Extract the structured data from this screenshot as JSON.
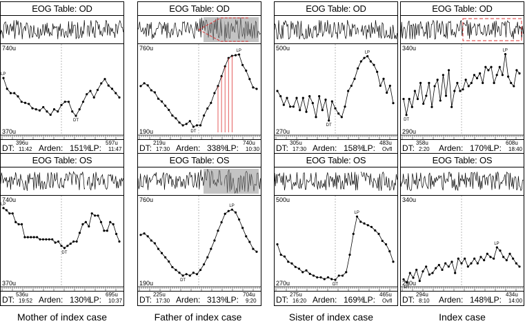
{
  "panel_title_od": "EOG Table: OD",
  "panel_title_os": "EOG Table: OS",
  "labels": {
    "dt": "DT:",
    "arden": "Arden:",
    "lp": "LP:",
    "dt_mark": "DT",
    "lp_mark": "LP"
  },
  "columns": [
    {
      "caption": "Mother of index case",
      "od": {
        "ymax": "740u",
        "ymin": "370u",
        "dt_value": "396u",
        "dt_time": "11:42",
        "arden": "151%",
        "lp_value": "597u",
        "lp_time": "11:47",
        "values": [
          615,
          565,
          545,
          545,
          530,
          505,
          500,
          495,
          475,
          470,
          465,
          480,
          460,
          445,
          470,
          460,
          490,
          505,
          505,
          460,
          440,
          470,
          505,
          540,
          555,
          525,
          560,
          590,
          610,
          580,
          565,
          545,
          525
        ]
      },
      "os": {
        "ymax": "740u",
        "ymin": "370u",
        "dt_value": "536u",
        "dt_time": "19:52",
        "arden": "130%",
        "lp_value": "695u",
        "lp_time": "10:37",
        "values": [
          715,
          705,
          690,
          690,
          650,
          640,
          640,
          580,
          580,
          580,
          580,
          580,
          570,
          570,
          570,
          570,
          570,
          555,
          560,
          540,
          530,
          540,
          550,
          560,
          560,
          600,
          640,
          650,
          630,
          690,
          680,
          680,
          650,
          610,
          610,
          650,
          640,
          595,
          560
        ]
      }
    },
    {
      "caption": "Father of index case",
      "od": {
        "ymax": "760u",
        "ymin": "190u",
        "dt_value": "219u",
        "dt_time": "17:30",
        "arden": "338%",
        "lp_value": "740u",
        "lp_time": "10:30",
        "values": [
          510,
          530,
          515,
          480,
          465,
          420,
          400,
          370,
          340,
          300,
          280,
          250,
          230,
          240,
          260,
          220,
          230,
          230,
          300,
          350,
          390,
          460,
          510,
          580,
          650,
          710,
          725,
          730,
          735,
          660,
          620,
          560,
          500,
          490
        ]
      },
      "os": {
        "ymax": "760u",
        "ymin": "190u",
        "dt_value": "225u",
        "dt_time": "17:30",
        "arden": "313%",
        "lp_value": "704u",
        "lp_time": "9:20",
        "values": [
          530,
          540,
          520,
          490,
          470,
          430,
          400,
          370,
          340,
          300,
          280,
          260,
          240,
          250,
          240,
          260,
          250,
          280,
          320,
          370,
          430,
          490,
          560,
          620,
          680,
          700,
          710,
          690,
          640,
          580,
          520,
          480,
          430,
          410
        ]
      }
    },
    {
      "caption": "Sister of index case",
      "od": {
        "ymax": "500u",
        "ymin": "270u",
        "dt_value": "305u",
        "dt_time": "17:30",
        "arden": "158%",
        "lp_value": "483u",
        "lp_time": "Ovfl",
        "values": [
          385,
          370,
          345,
          365,
          340,
          340,
          365,
          330,
          365,
          325,
          370,
          350,
          310,
          370,
          330,
          360,
          300,
          355,
          335,
          320,
          310,
          340,
          385,
          400,
          420,
          450,
          470,
          480,
          485,
          470,
          460,
          440,
          400,
          420,
          380,
          400,
          350
        ]
      },
      "os": {
        "ymax": "500u",
        "ymin": "270u",
        "dt_value": "275u",
        "dt_time": "16:20",
        "arden": "169%",
        "lp_value": "465u",
        "lp_time": "Ovfl",
        "values": [
          380,
          350,
          345,
          330,
          325,
          315,
          310,
          300,
          305,
          295,
          290,
          285,
          285,
          280,
          285,
          280,
          278,
          290,
          290,
          300,
          350,
          410,
          460,
          445,
          440,
          435,
          430,
          420,
          410,
          390,
          380,
          360,
          330
        ]
      }
    },
    {
      "caption": "Index case",
      "od": {
        "ymax": "340u",
        "ymin": "290u",
        "dt_value": "358u",
        "dt_time": "2:20",
        "arden": "170%",
        "lp_value": "608u",
        "lp_time": "18:40",
        "values": [
          310,
          300,
          310,
          305,
          315,
          310,
          320,
          307,
          312,
          320,
          305,
          318,
          322,
          309,
          325,
          312,
          328,
          305,
          315,
          320,
          315,
          316,
          322,
          318,
          320,
          325,
          323,
          326,
          320,
          330,
          328,
          330,
          320,
          325,
          330,
          325,
          338,
          324,
          320,
          318,
          328,
          326
        ]
      },
      "os": {
        "ymax": "340u",
        "ymin": "290u",
        "dt_value": "294u",
        "dt_time": "8:10",
        "arden": "148%",
        "lp_value": "434u",
        "lp_time": "14:00",
        "values": [
          292,
          290,
          296,
          293,
          298,
          291,
          297,
          300,
          295,
          296,
          299,
          301,
          298,
          302,
          300,
          303,
          296,
          305,
          302,
          305,
          300,
          302,
          305,
          302,
          306,
          304,
          308,
          306,
          305,
          312,
          310,
          306,
          304,
          308,
          305,
          302,
          300
        ]
      }
    }
  ]
}
